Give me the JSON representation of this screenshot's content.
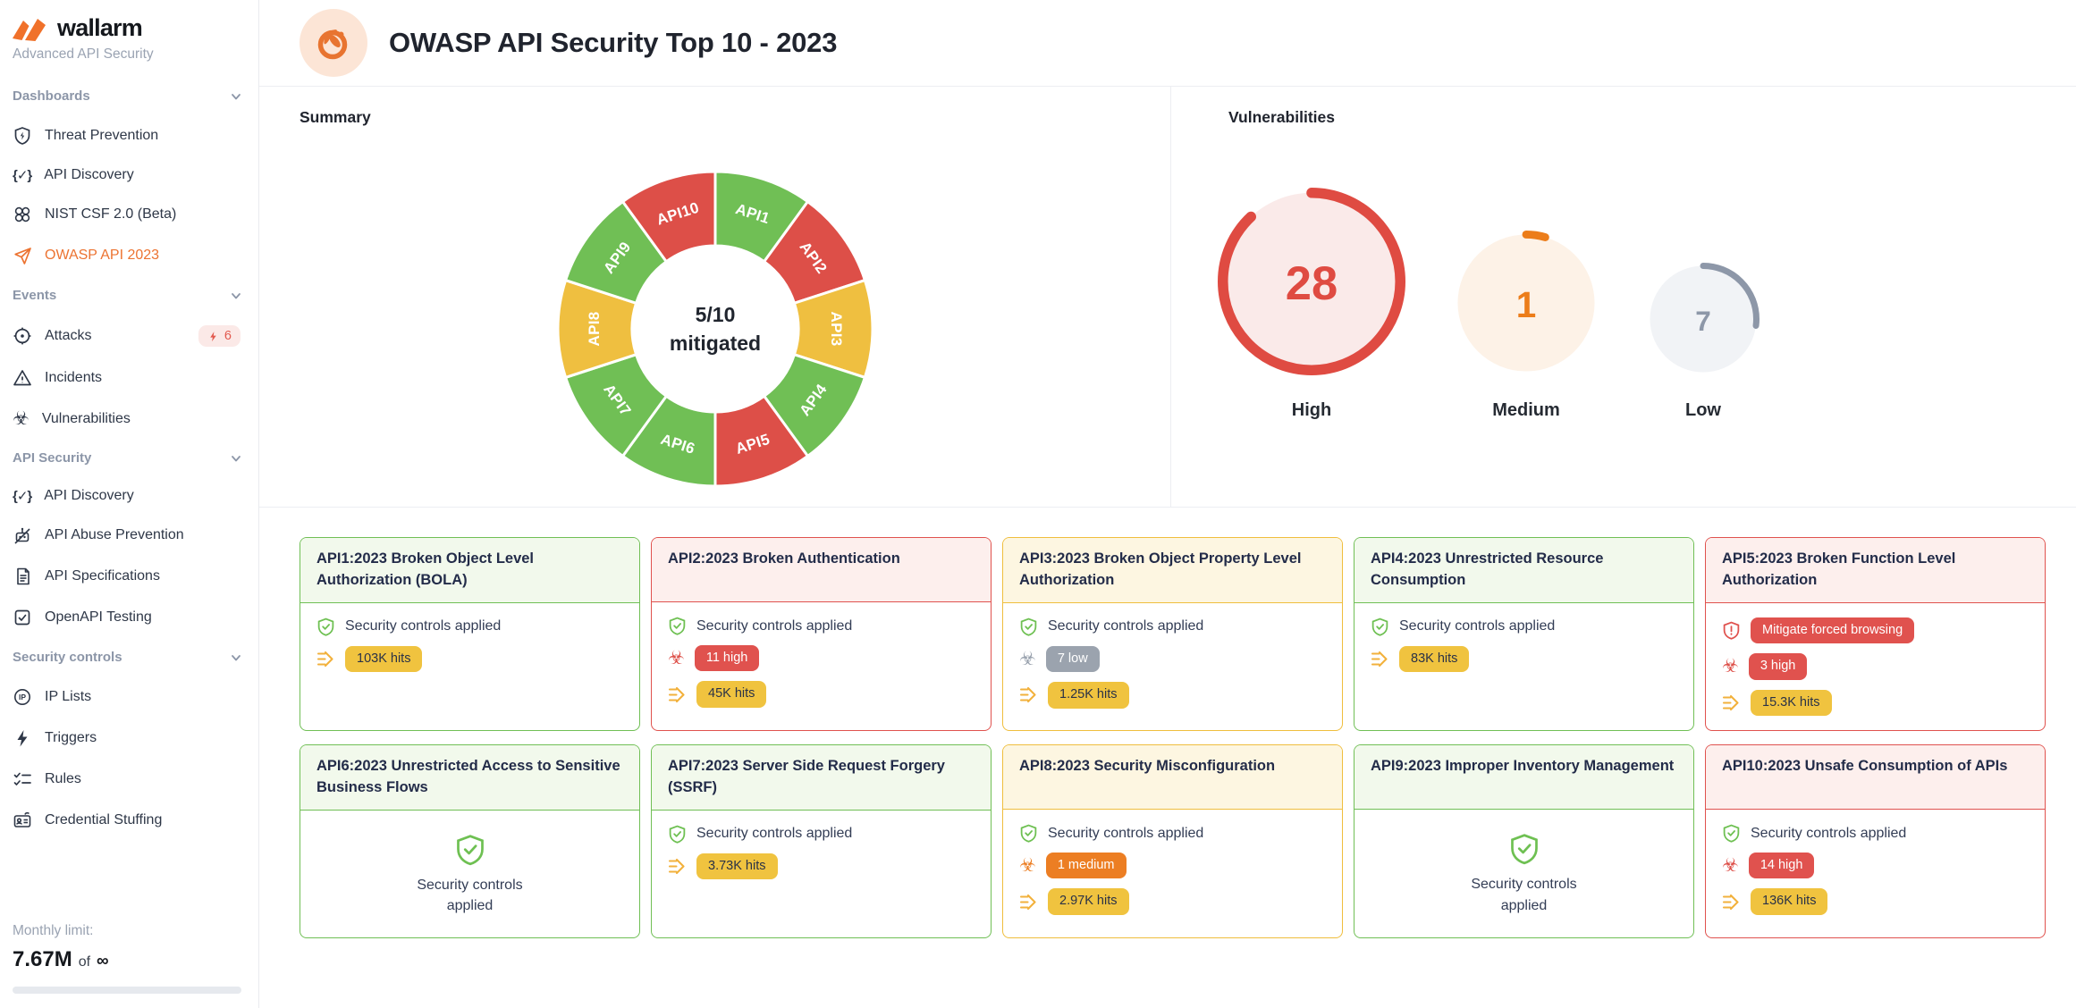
{
  "colors": {
    "accent_orange": "#ec7331",
    "mitigated_green": "#70bf55",
    "critical_red": "#dd4f48",
    "warning_yellow": "#efbf40"
  },
  "sidebar": {
    "logo_text": "wallarm",
    "subtitle": "Advanced API Security",
    "sections": [
      {
        "label": "Dashboards",
        "items": [
          {
            "label": "Threat Prevention",
            "icon": "shield-bolt-icon"
          },
          {
            "label": "API Discovery",
            "icon": "braces-icon"
          },
          {
            "label": "NIST CSF 2.0 (Beta)",
            "icon": "four-circles-icon"
          },
          {
            "label": "OWASP API 2023",
            "icon": "paper-plane-icon",
            "active": true
          }
        ]
      },
      {
        "label": "Events",
        "items": [
          {
            "label": "Attacks",
            "icon": "target-icon",
            "badge": "6"
          },
          {
            "label": "Incidents",
            "icon": "warning-triangle-icon"
          },
          {
            "label": "Vulnerabilities",
            "icon": "biohazard-icon"
          }
        ]
      },
      {
        "label": "API Security",
        "items": [
          {
            "label": "API Discovery",
            "icon": "braces-icon"
          },
          {
            "label": "API Abuse Prevention",
            "icon": "bot-crossed-icon"
          },
          {
            "label": "API Specifications",
            "icon": "document-icon"
          },
          {
            "label": "OpenAPI Testing",
            "icon": "checkbox-icon"
          }
        ]
      },
      {
        "label": "Security controls",
        "items": [
          {
            "label": "IP Lists",
            "icon": "ip-circle-icon"
          },
          {
            "label": "Triggers",
            "icon": "bolt-icon"
          },
          {
            "label": "Rules",
            "icon": "checklist-icon"
          },
          {
            "label": "Credential Stuffing",
            "icon": "id-card-icon"
          }
        ]
      }
    ],
    "monthly_limit": {
      "label": "Monthly limit:",
      "value": "7.67M",
      "of": "of",
      "max": "∞"
    }
  },
  "header": {
    "title": "OWASP API Security Top 10 - 2023"
  },
  "chart_data": [
    {
      "type": "pie",
      "title": "Summary",
      "center_label": "5/10",
      "center_sublabel": "mitigated",
      "legend_position": "none",
      "segments": [
        {
          "label": "API1",
          "value": 1,
          "status": "mitigated"
        },
        {
          "label": "API2",
          "value": 1,
          "status": "critical"
        },
        {
          "label": "API3",
          "value": 1,
          "status": "warning"
        },
        {
          "label": "API4",
          "value": 1,
          "status": "mitigated"
        },
        {
          "label": "API5",
          "value": 1,
          "status": "critical"
        },
        {
          "label": "API6",
          "value": 1,
          "status": "mitigated"
        },
        {
          "label": "API7",
          "value": 1,
          "status": "mitigated"
        },
        {
          "label": "API8",
          "value": 1,
          "status": "warning"
        },
        {
          "label": "API9",
          "value": 1,
          "status": "mitigated"
        },
        {
          "label": "API10",
          "value": 1,
          "status": "critical"
        }
      ],
      "status_colors": {
        "mitigated": "#70bf55",
        "critical": "#dd4f48",
        "warning": "#efbf40"
      }
    },
    {
      "type": "gauge",
      "title": "Vulnerabilities",
      "gauges": [
        {
          "label": "High",
          "value": 28,
          "arc_fraction": 0.88,
          "color": "#df4b42",
          "fill": "#faeae9",
          "diameter": 210
        },
        {
          "label": "Medium",
          "value": 1,
          "arc_fraction": 0.045,
          "color": "#ec7d1a",
          "fill": "#fdf2e7",
          "diameter": 162
        },
        {
          "label": "Low",
          "value": 7,
          "arc_fraction": 0.27,
          "color": "#8d97a8",
          "fill": "#f1f3f6",
          "diameter": 126
        }
      ]
    }
  ],
  "cards": [
    {
      "id": "API1",
      "status": "green",
      "title": "API1:2023 Broken Object Level Authorization (BOLA)",
      "rows": [
        {
          "type": "text",
          "icon": "shield-check-icon",
          "icon_color": "#6ec052",
          "text": "Security controls applied"
        },
        {
          "type": "badge",
          "icon": "hits-arrows-icon",
          "icon_color": "#f2b13c",
          "badge": "103K hits",
          "badge_color": "yellow"
        }
      ]
    },
    {
      "id": "API2",
      "status": "red",
      "title": "API2:2023 Broken Authentication",
      "rows": [
        {
          "type": "text",
          "icon": "shield-check-icon",
          "icon_color": "#6ec052",
          "text": "Security controls applied"
        },
        {
          "type": "badge",
          "icon": "biohazard-icon",
          "icon_color": "#dd4f48",
          "badge": "11 high",
          "badge_color": "red"
        },
        {
          "type": "badge",
          "icon": "hits-arrows-icon",
          "icon_color": "#f2b13c",
          "badge": "45K hits",
          "badge_color": "yellow"
        }
      ]
    },
    {
      "id": "API3",
      "status": "yellow",
      "title": "API3:2023 Broken Object Property Level Authorization",
      "rows": [
        {
          "type": "text",
          "icon": "shield-check-icon",
          "icon_color": "#6ec052",
          "text": "Security controls applied"
        },
        {
          "type": "badge",
          "icon": "biohazard-icon",
          "icon_color": "#98a1ad",
          "badge": "7 low",
          "badge_color": "gray"
        },
        {
          "type": "badge",
          "icon": "hits-arrows-icon",
          "icon_color": "#f2b13c",
          "badge": "1.25K hits",
          "badge_color": "yellow"
        }
      ]
    },
    {
      "id": "API4",
      "status": "green",
      "title": "API4:2023 Unrestricted Resource Consumption",
      "rows": [
        {
          "type": "text",
          "icon": "shield-check-icon",
          "icon_color": "#6ec052",
          "text": "Security controls applied"
        },
        {
          "type": "badge",
          "icon": "hits-arrows-icon",
          "icon_color": "#f2b13c",
          "badge": "83K hits",
          "badge_color": "yellow"
        }
      ]
    },
    {
      "id": "API5",
      "status": "red",
      "title": "API5:2023 Broken Function Level Authorization",
      "rows": [
        {
          "type": "badge",
          "icon": "shield-alert-icon",
          "icon_color": "#e0524e",
          "badge": "Mitigate forced browsing",
          "badge_color": "red"
        },
        {
          "type": "badge",
          "icon": "biohazard-icon",
          "icon_color": "#dd4f48",
          "badge": "3 high",
          "badge_color": "red"
        },
        {
          "type": "badge",
          "icon": "hits-arrows-icon",
          "icon_color": "#f2b13c",
          "badge": "15.3K hits",
          "badge_color": "yellow"
        }
      ]
    },
    {
      "id": "API6",
      "status": "green",
      "title": "API6:2023 Unrestricted Access to Sensitive Business Flows",
      "centered": true,
      "rows": [
        {
          "type": "centered",
          "icon": "shield-check-icon",
          "icon_color": "#6ec052",
          "text": "Security controls applied"
        }
      ]
    },
    {
      "id": "API7",
      "status": "green",
      "title": "API7:2023 Server Side Request Forgery (SSRF)",
      "rows": [
        {
          "type": "text",
          "icon": "shield-check-icon",
          "icon_color": "#6ec052",
          "text": "Security controls applied"
        },
        {
          "type": "badge",
          "icon": "hits-arrows-icon",
          "icon_color": "#f2b13c",
          "badge": "3.73K hits",
          "badge_color": "yellow"
        }
      ]
    },
    {
      "id": "API8",
      "status": "yellow",
      "title": "API8:2023 Security Misconfiguration",
      "rows": [
        {
          "type": "text",
          "icon": "shield-check-icon",
          "icon_color": "#6ec052",
          "text": "Security controls applied"
        },
        {
          "type": "badge",
          "icon": "biohazard-icon",
          "icon_color": "#ec7e23",
          "badge": "1 medium",
          "badge_color": "orange"
        },
        {
          "type": "badge",
          "icon": "hits-arrows-icon",
          "icon_color": "#f2b13c",
          "badge": "2.97K hits",
          "badge_color": "yellow"
        }
      ]
    },
    {
      "id": "API9",
      "status": "green",
      "title": "API9:2023 Improper Inventory Management",
      "centered": true,
      "rows": [
        {
          "type": "centered",
          "icon": "shield-check-icon",
          "icon_color": "#6ec052",
          "text": "Security controls applied"
        }
      ]
    },
    {
      "id": "API10",
      "status": "red",
      "title": "API10:2023 Unsafe Consumption of APIs",
      "rows": [
        {
          "type": "text",
          "icon": "shield-check-icon",
          "icon_color": "#6ec052",
          "text": "Security controls applied"
        },
        {
          "type": "badge",
          "icon": "biohazard-icon",
          "icon_color": "#dd4f48",
          "badge": "14 high",
          "badge_color": "red"
        },
        {
          "type": "badge",
          "icon": "hits-arrows-icon",
          "icon_color": "#f2b13c",
          "badge": "136K hits",
          "badge_color": "yellow"
        }
      ]
    }
  ]
}
